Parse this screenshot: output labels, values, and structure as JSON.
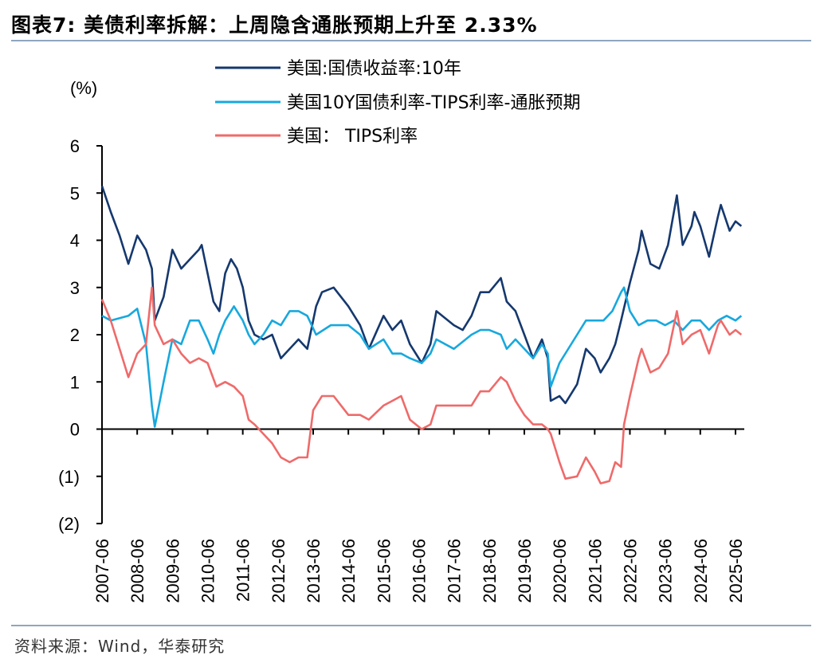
{
  "header": {
    "title": "图表7:  美债利率拆解：上周隐含通胀预期上升至 2.33%"
  },
  "footer": {
    "source": "资料来源：Wind，华泰研究"
  },
  "chart_data": {
    "type": "line",
    "yunit": "(%)",
    "ylim": [
      -2,
      6
    ],
    "yticks": [
      {
        "value": 6,
        "label": "6"
      },
      {
        "value": 5,
        "label": "5"
      },
      {
        "value": 4,
        "label": "4"
      },
      {
        "value": 3,
        "label": "3"
      },
      {
        "value": 2,
        "label": "2"
      },
      {
        "value": 1,
        "label": "1"
      },
      {
        "value": 0,
        "label": "0"
      },
      {
        "value": -1,
        "label": "(1)"
      },
      {
        "value": -2,
        "label": "(2)"
      }
    ],
    "xlim": [
      "2007-06",
      "2025-09"
    ],
    "xticks": [
      "2007-06",
      "2008-06",
      "2009-06",
      "2010-06",
      "2011-06",
      "2012-06",
      "2013-06",
      "2014-06",
      "2015-06",
      "2016-06",
      "2017-06",
      "2018-06",
      "2019-06",
      "2020-06",
      "2021-06",
      "2022-06",
      "2023-06",
      "2024-06",
      "2025-06"
    ],
    "legend_position": "top",
    "series": [
      {
        "name": "美国:国债收益率:10年",
        "color": "#15386e",
        "points": [
          [
            "2007-06",
            5.15
          ],
          [
            "2007-09",
            4.6
          ],
          [
            "2007-12",
            4.1
          ],
          [
            "2008-03",
            3.5
          ],
          [
            "2008-06",
            4.1
          ],
          [
            "2008-09",
            3.8
          ],
          [
            "2008-11",
            3.4
          ],
          [
            "2008-12",
            2.3
          ],
          [
            "2009-03",
            2.8
          ],
          [
            "2009-06",
            3.8
          ],
          [
            "2009-09",
            3.4
          ],
          [
            "2009-12",
            3.6
          ],
          [
            "2010-03",
            3.8
          ],
          [
            "2010-04",
            3.9
          ],
          [
            "2010-06",
            3.3
          ],
          [
            "2010-08",
            2.7
          ],
          [
            "2010-10",
            2.5
          ],
          [
            "2010-12",
            3.3
          ],
          [
            "2011-02",
            3.6
          ],
          [
            "2011-04",
            3.4
          ],
          [
            "2011-06",
            3.0
          ],
          [
            "2011-08",
            2.3
          ],
          [
            "2011-10",
            2.0
          ],
          [
            "2012-01",
            1.9
          ],
          [
            "2012-04",
            2.0
          ],
          [
            "2012-07",
            1.5
          ],
          [
            "2012-10",
            1.7
          ],
          [
            "2013-01",
            1.9
          ],
          [
            "2013-04",
            1.7
          ],
          [
            "2013-07",
            2.6
          ],
          [
            "2013-09",
            2.9
          ],
          [
            "2014-01",
            3.0
          ],
          [
            "2014-06",
            2.6
          ],
          [
            "2014-10",
            2.2
          ],
          [
            "2015-01",
            1.7
          ],
          [
            "2015-06",
            2.4
          ],
          [
            "2015-09",
            2.1
          ],
          [
            "2015-12",
            2.3
          ],
          [
            "2016-03",
            1.8
          ],
          [
            "2016-07",
            1.4
          ],
          [
            "2016-10",
            1.8
          ],
          [
            "2016-12",
            2.5
          ],
          [
            "2017-06",
            2.2
          ],
          [
            "2017-09",
            2.1
          ],
          [
            "2017-12",
            2.4
          ],
          [
            "2018-03",
            2.9
          ],
          [
            "2018-06",
            2.9
          ],
          [
            "2018-10",
            3.2
          ],
          [
            "2018-12",
            2.7
          ],
          [
            "2019-03",
            2.5
          ],
          [
            "2019-06",
            2.0
          ],
          [
            "2019-09",
            1.5
          ],
          [
            "2019-12",
            1.9
          ],
          [
            "2020-02",
            1.5
          ],
          [
            "2020-03",
            0.6
          ],
          [
            "2020-06",
            0.7
          ],
          [
            "2020-08",
            0.55
          ],
          [
            "2020-12",
            0.95
          ],
          [
            "2021-03",
            1.7
          ],
          [
            "2021-06",
            1.5
          ],
          [
            "2021-08",
            1.2
          ],
          [
            "2021-11",
            1.5
          ],
          [
            "2022-01",
            1.8
          ],
          [
            "2022-03",
            2.3
          ],
          [
            "2022-06",
            3.1
          ],
          [
            "2022-09",
            3.8
          ],
          [
            "2022-10",
            4.2
          ],
          [
            "2023-01",
            3.5
          ],
          [
            "2023-04",
            3.4
          ],
          [
            "2023-07",
            3.9
          ],
          [
            "2023-10",
            4.95
          ],
          [
            "2023-12",
            3.9
          ],
          [
            "2024-03",
            4.3
          ],
          [
            "2024-04",
            4.6
          ],
          [
            "2024-06",
            4.3
          ],
          [
            "2024-09",
            3.65
          ],
          [
            "2024-12",
            4.5
          ],
          [
            "2025-01",
            4.75
          ],
          [
            "2025-04",
            4.2
          ],
          [
            "2025-06",
            4.4
          ],
          [
            "2025-08",
            4.3
          ]
        ]
      },
      {
        "name": "美国10Y国债利率-TIPS利率-通胀预期",
        "color": "#17a8de",
        "points": [
          [
            "2007-06",
            2.4
          ],
          [
            "2007-09",
            2.3
          ],
          [
            "2007-12",
            2.35
          ],
          [
            "2008-03",
            2.4
          ],
          [
            "2008-06",
            2.55
          ],
          [
            "2008-09",
            1.8
          ],
          [
            "2008-11",
            0.5
          ],
          [
            "2008-12",
            0.05
          ],
          [
            "2009-03",
            1.0
          ],
          [
            "2009-06",
            1.9
          ],
          [
            "2009-09",
            1.8
          ],
          [
            "2009-12",
            2.3
          ],
          [
            "2010-03",
            2.3
          ],
          [
            "2010-06",
            1.9
          ],
          [
            "2010-08",
            1.6
          ],
          [
            "2010-10",
            2.0
          ],
          [
            "2010-12",
            2.3
          ],
          [
            "2011-03",
            2.6
          ],
          [
            "2011-06",
            2.3
          ],
          [
            "2011-08",
            2.0
          ],
          [
            "2011-10",
            1.8
          ],
          [
            "2012-01",
            2.0
          ],
          [
            "2012-04",
            2.3
          ],
          [
            "2012-07",
            2.2
          ],
          [
            "2012-10",
            2.5
          ],
          [
            "2013-01",
            2.5
          ],
          [
            "2013-04",
            2.4
          ],
          [
            "2013-07",
            2.0
          ],
          [
            "2013-12",
            2.2
          ],
          [
            "2014-06",
            2.2
          ],
          [
            "2014-10",
            2.0
          ],
          [
            "2015-01",
            1.7
          ],
          [
            "2015-06",
            1.9
          ],
          [
            "2015-09",
            1.6
          ],
          [
            "2015-12",
            1.6
          ],
          [
            "2016-03",
            1.5
          ],
          [
            "2016-07",
            1.4
          ],
          [
            "2016-10",
            1.6
          ],
          [
            "2016-12",
            1.9
          ],
          [
            "2017-06",
            1.7
          ],
          [
            "2017-12",
            2.0
          ],
          [
            "2018-03",
            2.1
          ],
          [
            "2018-06",
            2.1
          ],
          [
            "2018-10",
            2.0
          ],
          [
            "2018-12",
            1.7
          ],
          [
            "2019-03",
            1.9
          ],
          [
            "2019-06",
            1.7
          ],
          [
            "2019-09",
            1.5
          ],
          [
            "2019-12",
            1.8
          ],
          [
            "2020-02",
            1.6
          ],
          [
            "2020-03",
            0.9
          ],
          [
            "2020-06",
            1.4
          ],
          [
            "2020-12",
            2.0
          ],
          [
            "2021-03",
            2.3
          ],
          [
            "2021-06",
            2.3
          ],
          [
            "2021-09",
            2.3
          ],
          [
            "2021-12",
            2.5
          ],
          [
            "2022-03",
            2.9
          ],
          [
            "2022-04",
            3.0
          ],
          [
            "2022-06",
            2.5
          ],
          [
            "2022-09",
            2.2
          ],
          [
            "2022-12",
            2.3
          ],
          [
            "2023-03",
            2.3
          ],
          [
            "2023-06",
            2.2
          ],
          [
            "2023-09",
            2.3
          ],
          [
            "2023-12",
            2.1
          ],
          [
            "2024-03",
            2.3
          ],
          [
            "2024-06",
            2.3
          ],
          [
            "2024-09",
            2.1
          ],
          [
            "2024-12",
            2.3
          ],
          [
            "2025-03",
            2.4
          ],
          [
            "2025-06",
            2.3
          ],
          [
            "2025-08",
            2.4
          ]
        ]
      },
      {
        "name": "美国：  TIPS利率",
        "color": "#ef6a6a",
        "points": [
          [
            "2007-06",
            2.75
          ],
          [
            "2007-09",
            2.3
          ],
          [
            "2007-12",
            1.7
          ],
          [
            "2008-03",
            1.1
          ],
          [
            "2008-06",
            1.6
          ],
          [
            "2008-09",
            1.8
          ],
          [
            "2008-11",
            3.0
          ],
          [
            "2008-12",
            2.2
          ],
          [
            "2009-03",
            1.8
          ],
          [
            "2009-06",
            1.9
          ],
          [
            "2009-09",
            1.6
          ],
          [
            "2009-12",
            1.4
          ],
          [
            "2010-03",
            1.5
          ],
          [
            "2010-06",
            1.4
          ],
          [
            "2010-09",
            0.9
          ],
          [
            "2010-12",
            1.0
          ],
          [
            "2011-03",
            0.9
          ],
          [
            "2011-06",
            0.7
          ],
          [
            "2011-08",
            0.2
          ],
          [
            "2011-10",
            0.1
          ],
          [
            "2012-01",
            -0.1
          ],
          [
            "2012-04",
            -0.3
          ],
          [
            "2012-07",
            -0.6
          ],
          [
            "2012-10",
            -0.7
          ],
          [
            "2013-01",
            -0.6
          ],
          [
            "2013-04",
            -0.6
          ],
          [
            "2013-06",
            0.4
          ],
          [
            "2013-09",
            0.7
          ],
          [
            "2014-01",
            0.7
          ],
          [
            "2014-06",
            0.3
          ],
          [
            "2014-10",
            0.3
          ],
          [
            "2015-01",
            0.2
          ],
          [
            "2015-06",
            0.5
          ],
          [
            "2015-09",
            0.6
          ],
          [
            "2015-12",
            0.7
          ],
          [
            "2016-03",
            0.2
          ],
          [
            "2016-07",
            0.0
          ],
          [
            "2016-10",
            0.1
          ],
          [
            "2016-12",
            0.5
          ],
          [
            "2017-06",
            0.5
          ],
          [
            "2017-12",
            0.5
          ],
          [
            "2018-03",
            0.8
          ],
          [
            "2018-06",
            0.8
          ],
          [
            "2018-10",
            1.1
          ],
          [
            "2018-12",
            1.0
          ],
          [
            "2019-03",
            0.6
          ],
          [
            "2019-06",
            0.3
          ],
          [
            "2019-09",
            0.1
          ],
          [
            "2019-12",
            0.1
          ],
          [
            "2020-02",
            0.0
          ],
          [
            "2020-03",
            -0.1
          ],
          [
            "2020-06",
            -0.7
          ],
          [
            "2020-08",
            -1.05
          ],
          [
            "2020-12",
            -1.0
          ],
          [
            "2021-03",
            -0.6
          ],
          [
            "2021-06",
            -0.9
          ],
          [
            "2021-08",
            -1.15
          ],
          [
            "2021-11",
            -1.1
          ],
          [
            "2022-01",
            -0.7
          ],
          [
            "2022-03",
            -0.8
          ],
          [
            "2022-04",
            0.1
          ],
          [
            "2022-06",
            0.7
          ],
          [
            "2022-09",
            1.5
          ],
          [
            "2022-10",
            1.7
          ],
          [
            "2023-01",
            1.2
          ],
          [
            "2023-04",
            1.3
          ],
          [
            "2023-07",
            1.6
          ],
          [
            "2023-10",
            2.5
          ],
          [
            "2023-12",
            1.8
          ],
          [
            "2024-03",
            2.0
          ],
          [
            "2024-06",
            2.1
          ],
          [
            "2024-09",
            1.6
          ],
          [
            "2024-12",
            2.2
          ],
          [
            "2025-01",
            2.3
          ],
          [
            "2025-04",
            2.0
          ],
          [
            "2025-06",
            2.1
          ],
          [
            "2025-08",
            2.0
          ]
        ]
      }
    ]
  }
}
